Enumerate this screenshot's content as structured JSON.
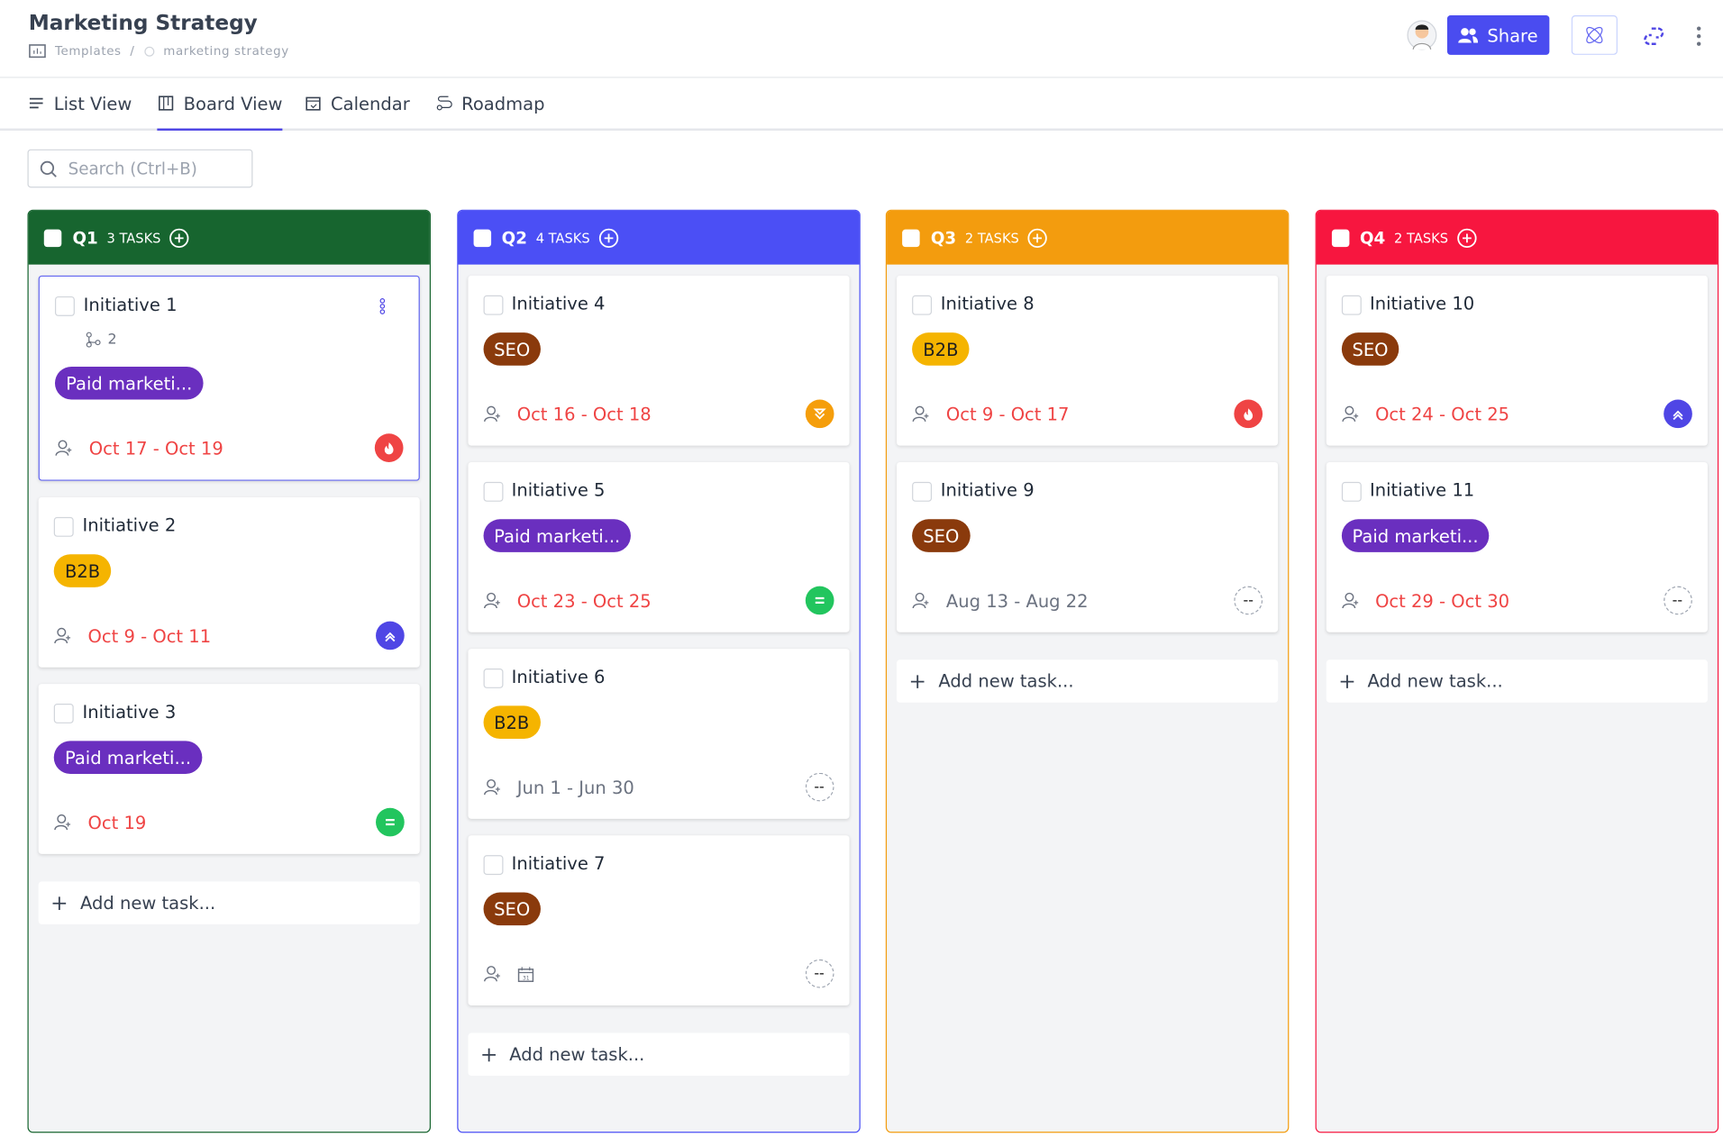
{
  "header": {
    "title": "Marketing Strategy",
    "breadcrumb": [
      "Templates",
      "marketing strategy"
    ],
    "share": "Share"
  },
  "tabs": [
    {
      "label": "List View",
      "active": false
    },
    {
      "label": "Board View",
      "active": true
    },
    {
      "label": "Calendar",
      "active": false
    },
    {
      "label": "Roadmap",
      "active": false
    }
  ],
  "search": {
    "placeholder": "Search (Ctrl+B)"
  },
  "columns": [
    {
      "name": "Q1",
      "count": "3 TASKS",
      "color": "#17652f",
      "add": "Add new task...",
      "cards": [
        {
          "title": "Initiative 1",
          "subtasks": "2",
          "tag": {
            "label": "Paid marketi...",
            "color": "#6a2fbf",
            "text_color": "#ffffff"
          },
          "date": "Oct 17 - Oct 19",
          "overdue": true,
          "priority": "urgent"
        },
        {
          "title": "Initiative 2",
          "tag": {
            "label": "B2B",
            "color": "#f5b400",
            "text_color": "#1f1f1f"
          },
          "date": "Oct 9 - Oct 11",
          "overdue": true,
          "priority": "high"
        },
        {
          "title": "Initiative 3",
          "tag": {
            "label": "Paid marketi...",
            "color": "#6a2fbf",
            "text_color": "#ffffff"
          },
          "date": "Oct 19",
          "overdue": true,
          "priority": "normal"
        }
      ]
    },
    {
      "name": "Q2",
      "count": "4 TASKS",
      "color": "#4b4ff5",
      "add": "Add new task...",
      "cards": [
        {
          "title": "Initiative 4",
          "tag": {
            "label": "SEO",
            "color": "#8a3a0c",
            "text_color": "#ffffff"
          },
          "date": "Oct 16 - Oct 18",
          "overdue": true,
          "priority": "low"
        },
        {
          "title": "Initiative 5",
          "tag": {
            "label": "Paid marketi...",
            "color": "#6a2fbf",
            "text_color": "#ffffff"
          },
          "date": "Oct 23 - Oct 25",
          "overdue": true,
          "priority": "normal"
        },
        {
          "title": "Initiative 6",
          "tag": {
            "label": "B2B",
            "color": "#f5b400",
            "text_color": "#1f1f1f"
          },
          "date": "Jun 1 - Jun 30",
          "overdue": false,
          "priority": "none",
          "priority_label": "--"
        },
        {
          "title": "Initiative 7",
          "tag": {
            "label": "SEO",
            "color": "#8a3a0c",
            "text_color": "#ffffff"
          },
          "priority": "none",
          "priority_label": "--"
        }
      ]
    },
    {
      "name": "Q3",
      "count": "2 TASKS",
      "color": "#f39c0e",
      "add": "Add new task...",
      "cards": [
        {
          "title": "Initiative 8",
          "tag": {
            "label": "B2B",
            "color": "#f5b400",
            "text_color": "#1f1f1f"
          },
          "date": "Oct 9 - Oct 17",
          "overdue": true,
          "priority": "urgent"
        },
        {
          "title": "Initiative 9",
          "tag": {
            "label": "SEO",
            "color": "#8a3a0c",
            "text_color": "#ffffff"
          },
          "date": "Aug 13 - Aug 22",
          "overdue": false,
          "priority": "none",
          "priority_label": "--"
        }
      ]
    },
    {
      "name": "Q4",
      "count": "2 TASKS",
      "color": "#f7163f",
      "add": "Add new task...",
      "cards": [
        {
          "title": "Initiative 10",
          "tag": {
            "label": "SEO",
            "color": "#8a3a0c",
            "text_color": "#ffffff"
          },
          "date": "Oct 24 - Oct 25",
          "overdue": true,
          "priority": "high"
        },
        {
          "title": "Initiative 11",
          "tag": {
            "label": "Paid marketi...",
            "color": "#6a2fbf",
            "text_color": "#ffffff"
          },
          "date": "Oct 29 - Oct 30",
          "overdue": true,
          "priority": "none",
          "priority_label": "--"
        }
      ]
    }
  ]
}
